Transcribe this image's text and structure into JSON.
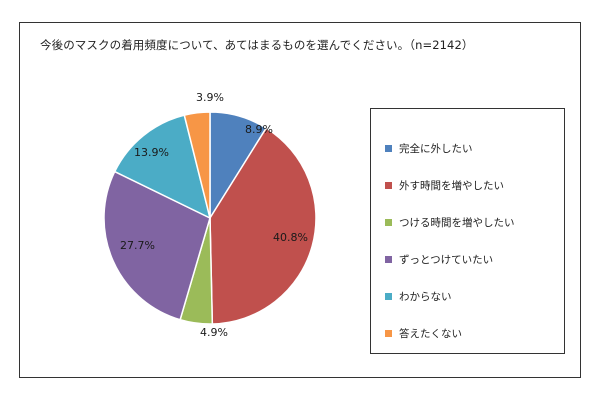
{
  "chart_data": {
    "type": "pie",
    "title": "今後のマスクの着用頻度について、あてはまるものを選んでください。（n=2142）",
    "slices": [
      {
        "label": "完全に外したい",
        "value": 8.9,
        "value_label": "8.9%",
        "color": "#4f81bd"
      },
      {
        "label": "外す時間を増やしたい",
        "value": 40.8,
        "value_label": "40.8%",
        "color": "#c0504d"
      },
      {
        "label": "つける時間を増やしたい",
        "value": 4.9,
        "value_label": "4.9%",
        "color": "#9bbb59"
      },
      {
        "label": "ずっとつけていたい",
        "value": 27.7,
        "value_label": "27.7%",
        "color": "#8064a2"
      },
      {
        "label": "わからない",
        "value": 13.9,
        "value_label": "13.9%",
        "color": "#4bacc6"
      },
      {
        "label": "答えたくない",
        "value": 3.9,
        "value_label": "3.9%",
        "color": "#f79646"
      }
    ],
    "start_angle": "12 o'clock",
    "direction": "clockwise",
    "legend_position": "right"
  }
}
